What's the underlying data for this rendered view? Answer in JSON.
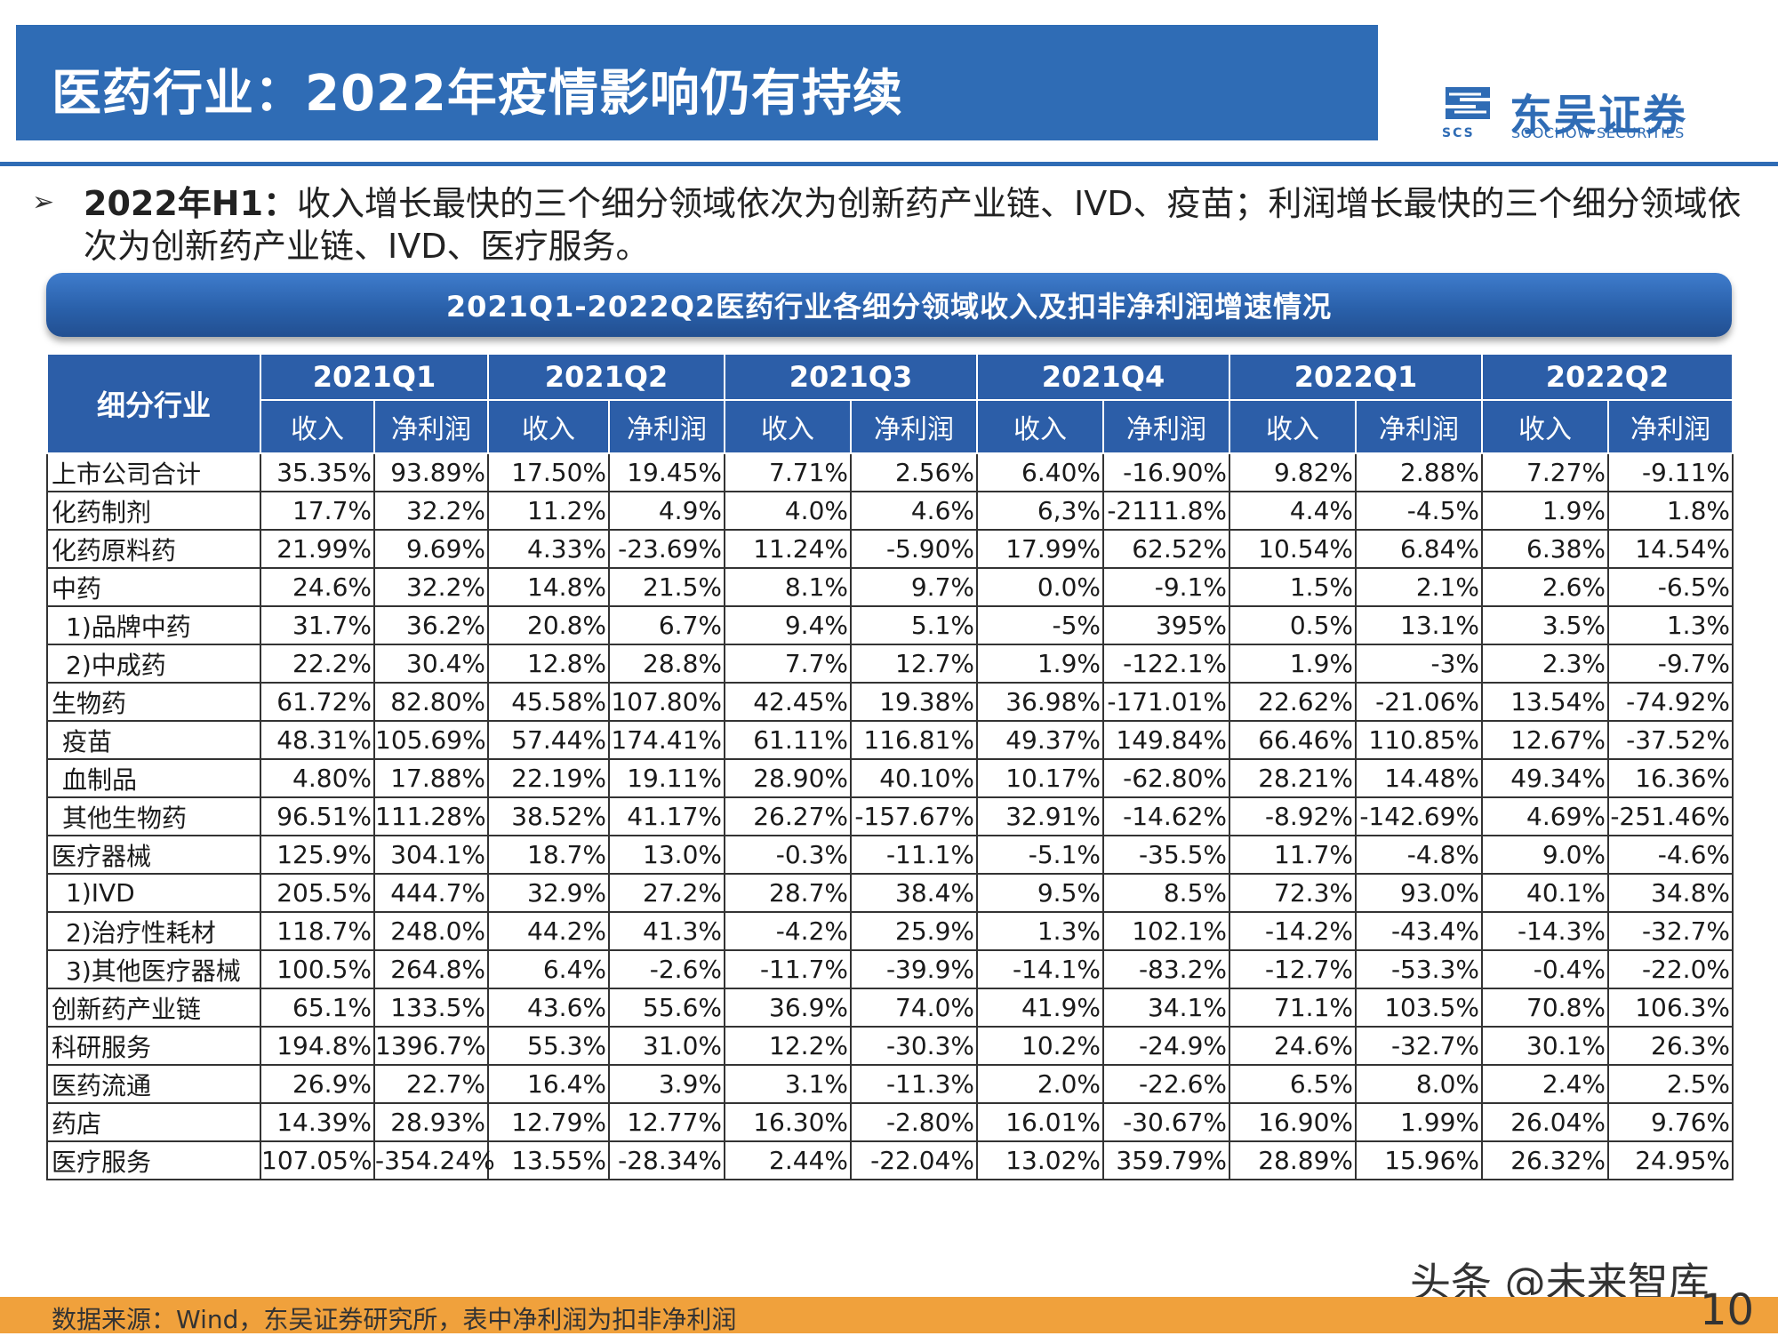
{
  "header": {
    "title": "医药行业：2022年疫情影响仍有持续",
    "logo_cn": "东吴证券",
    "logo_en": "SOOCHOW SECURITIES",
    "logo_abbr": "SCS",
    "colors": {
      "brand_blue": "#2f6cb5",
      "footer_orange": "#f0a13c"
    }
  },
  "intro": {
    "bullet": "➢",
    "lead": "2022年H1：",
    "text": "收入增长最快的三个细分领域依次为创新药产业链、IVD、疫苗；利润增长最快的三个细分领域依次为创新药产业链、IVD、医疗服务。"
  },
  "table": {
    "caption": "2021Q1-2022Q2医药行业各细分领域收入及扣非净利润增速情况",
    "category_header": "细分行业",
    "quarters": [
      "2021Q1",
      "2021Q2",
      "2021Q3",
      "2021Q4",
      "2022Q1",
      "2022Q2"
    ],
    "sub_revenue": "收入",
    "sub_profit": "净利润",
    "rows": [
      {
        "name": "上市公司合计",
        "values": [
          "35.35%",
          "93.89%",
          "17.50%",
          "19.45%",
          "7.71%",
          "2.56%",
          "6.40%",
          "-16.90%",
          "9.82%",
          "2.88%",
          "7.27%",
          "-9.11%"
        ]
      },
      {
        "name": "化药制剂",
        "values": [
          "17.7%",
          "32.2%",
          "11.2%",
          "4.9%",
          "4.0%",
          "4.6%",
          "6,3%",
          "-2111.8%",
          "4.4%",
          "-4.5%",
          "1.9%",
          "1.8%"
        ]
      },
      {
        "name": "化药原料药",
        "values": [
          "21.99%",
          "9.69%",
          "4.33%",
          "-23.69%",
          "11.24%",
          "-5.90%",
          "17.99%",
          "62.52%",
          "10.54%",
          "6.84%",
          "6.38%",
          "14.54%"
        ]
      },
      {
        "name": "中药",
        "values": [
          "24.6%",
          "32.2%",
          "14.8%",
          "21.5%",
          "8.1%",
          "9.7%",
          "0.0%",
          "-9.1%",
          "1.5%",
          "2.1%",
          "2.6%",
          "-6.5%"
        ]
      },
      {
        "name": "1)品牌中药",
        "values": [
          "31.7%",
          "36.2%",
          "20.8%",
          "6.7%",
          "9.4%",
          "5.1%",
          "-5%",
          "395%",
          "0.5%",
          "13.1%",
          "3.5%",
          "1.3%"
        ]
      },
      {
        "name": "2)中成药",
        "values": [
          "22.2%",
          "30.4%",
          "12.8%",
          "28.8%",
          "7.7%",
          "12.7%",
          "1.9%",
          "-122.1%",
          "1.9%",
          "-3%",
          "2.3%",
          "-9.7%"
        ]
      },
      {
        "name": "生物药",
        "values": [
          "61.72%",
          "82.80%",
          "45.58%",
          "107.80%",
          "42.45%",
          "19.38%",
          "36.98%",
          "-171.01%",
          "22.62%",
          "-21.06%",
          "13.54%",
          "-74.92%"
        ]
      },
      {
        "name": "疫苗",
        "values": [
          "48.31%",
          "105.69%",
          "57.44%",
          "174.41%",
          "61.11%",
          "116.81%",
          "49.37%",
          "149.84%",
          "66.46%",
          "110.85%",
          "12.67%",
          "-37.52%"
        ]
      },
      {
        "name": "血制品",
        "values": [
          "4.80%",
          "17.88%",
          "22.19%",
          "19.11%",
          "28.90%",
          "40.10%",
          "10.17%",
          "-62.80%",
          "28.21%",
          "14.48%",
          "49.34%",
          "16.36%"
        ]
      },
      {
        "name": "其他生物药",
        "values": [
          "96.51%",
          "111.28%",
          "38.52%",
          "41.17%",
          "26.27%",
          "-157.67%",
          "32.91%",
          "-14.62%",
          "-8.92%",
          "-142.69%",
          "4.69%",
          "-251.46%"
        ]
      },
      {
        "name": "医疗器械",
        "values": [
          "125.9%",
          "304.1%",
          "18.7%",
          "13.0%",
          "-0.3%",
          "-11.1%",
          "-5.1%",
          "-35.5%",
          "11.7%",
          "-4.8%",
          "9.0%",
          "-4.6%"
        ]
      },
      {
        "name": "1)IVD",
        "values": [
          "205.5%",
          "444.7%",
          "32.9%",
          "27.2%",
          "28.7%",
          "38.4%",
          "9.5%",
          "8.5%",
          "72.3%",
          "93.0%",
          "40.1%",
          "34.8%"
        ]
      },
      {
        "name": "2)治疗性耗材",
        "values": [
          "118.7%",
          "248.0%",
          "44.2%",
          "41.3%",
          "-4.2%",
          "25.9%",
          "1.3%",
          "102.1%",
          "-14.2%",
          "-43.4%",
          "-14.3%",
          "-32.7%"
        ]
      },
      {
        "name": "3)其他医疗器械",
        "values": [
          "100.5%",
          "264.8%",
          "6.4%",
          "-2.6%",
          "-11.7%",
          "-39.9%",
          "-14.1%",
          "-83.2%",
          "-12.7%",
          "-53.3%",
          "-0.4%",
          "-22.0%"
        ]
      },
      {
        "name": "创新药产业链",
        "values": [
          "65.1%",
          "133.5%",
          "43.6%",
          "55.6%",
          "36.9%",
          "74.0%",
          "41.9%",
          "34.1%",
          "71.1%",
          "103.5%",
          "70.8%",
          "106.3%"
        ]
      },
      {
        "name": "科研服务",
        "values": [
          "194.8%",
          "1396.7%",
          "55.3%",
          "31.0%",
          "12.2%",
          "-30.3%",
          "10.2%",
          "-24.9%",
          "24.6%",
          "-32.7%",
          "30.1%",
          "26.3%"
        ]
      },
      {
        "name": "医药流通",
        "values": [
          "26.9%",
          "22.7%",
          "16.4%",
          "3.9%",
          "3.1%",
          "-11.3%",
          "2.0%",
          "-22.6%",
          "6.5%",
          "8.0%",
          "2.4%",
          "2.5%"
        ]
      },
      {
        "name": "药店",
        "values": [
          "14.39%",
          "28.93%",
          "12.79%",
          "12.77%",
          "16.30%",
          "-2.80%",
          "16.01%",
          "-30.67%",
          "16.90%",
          "1.99%",
          "26.04%",
          "9.76%"
        ]
      },
      {
        "name": "医疗服务",
        "values": [
          "107.05%",
          "-354.24%",
          "13.55%",
          "-28.34%",
          "2.44%",
          "-22.04%",
          "13.02%",
          "359.79%",
          "28.89%",
          "15.96%",
          "26.32%",
          "24.95%"
        ]
      }
    ]
  },
  "footer": {
    "source": "数据来源：Wind，东吴证券研究所，表中净利润为扣非净利润",
    "page_number": "10",
    "watermark": "头条 @未来智库"
  }
}
